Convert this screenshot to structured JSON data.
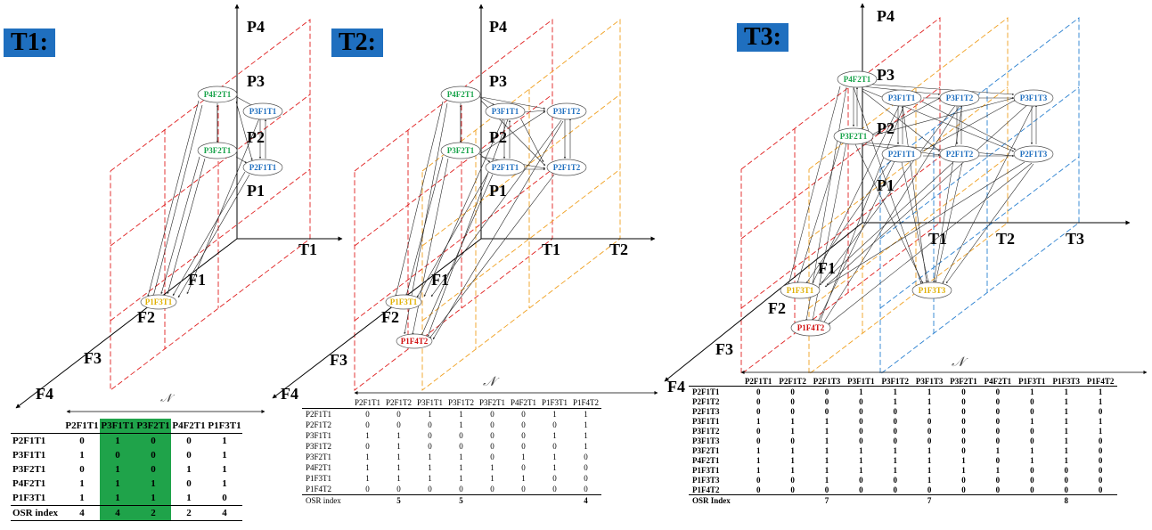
{
  "panels": [
    {
      "title": "T1:"
    },
    {
      "title": "T2:"
    },
    {
      "title": "T3:"
    }
  ],
  "axes": {
    "p4": "P4",
    "p3": "P3",
    "p2": "P2",
    "p1": "P1",
    "t1": "T1",
    "t2": "T2",
    "t3": "T3",
    "f1": "F1",
    "f2": "F2",
    "f3": "F3",
    "f4": "F4",
    "n_symbol": "𝒩"
  },
  "nodes": {
    "p4f2t1": "P4F2T1",
    "p3f2t1": "P3F2T1",
    "p3f1t1": "P3F1T1",
    "p2f1t1": "P2F1T1",
    "p1f3t1": "P1F3T1",
    "p3f1t2": "P3F1T2",
    "p2f1t2": "P2F1T2",
    "p1f4t2": "P1F4T2",
    "p3f1t3": "P3F1T3",
    "p2f1t3": "P2F1T3",
    "p1f3t3": "P1F3T3"
  },
  "colors": {
    "green_node": "#18a34a",
    "blue_node": "#1f6fbf",
    "yellow_node": "#e0b000",
    "red_node": "#d01010",
    "t1_plane": "#e02020",
    "t2_plane": "#f0a020",
    "t3_plane": "#2a80d0",
    "highlight": "#1fa34a",
    "title_bg": "#1f6fbf"
  },
  "table_t1": {
    "columns": [
      "P2F1T1",
      "P3F1T1",
      "P3F2T1",
      "P4F2T1",
      "P1F3T1"
    ],
    "rows": [
      {
        "label": "P2F1T1",
        "values": [
          "0",
          "1",
          "0",
          "0",
          "1"
        ]
      },
      {
        "label": "P3F1T1",
        "values": [
          "1",
          "0",
          "0",
          "0",
          "1"
        ]
      },
      {
        "label": "P3F2T1",
        "values": [
          "0",
          "1",
          "0",
          "1",
          "1"
        ]
      },
      {
        "label": "P4F2T1",
        "values": [
          "1",
          "1",
          "1",
          "0",
          "1"
        ]
      },
      {
        "label": "P1F3T1",
        "values": [
          "1",
          "1",
          "1",
          "1",
          "0"
        ]
      }
    ],
    "osr_label": "OSR index",
    "osr": [
      "4",
      "4",
      "2",
      "2",
      "4"
    ]
  },
  "table_t2": {
    "columns": [
      "P2F1T1",
      "P2F1T2",
      "P3F1T1",
      "P3F1T2",
      "P3F2T1",
      "P4F2T1",
      "P1F3T1",
      "P1F4T2"
    ],
    "rows": [
      {
        "label": "P2F1T1",
        "values": [
          "0",
          "0",
          "1",
          "1",
          "0",
          "0",
          "1",
          "1"
        ]
      },
      {
        "label": "P2F1T2",
        "values": [
          "0",
          "0",
          "0",
          "1",
          "0",
          "0",
          "0",
          "1"
        ]
      },
      {
        "label": "P3F1T1",
        "values": [
          "1",
          "1",
          "0",
          "0",
          "0",
          "0",
          "1",
          "1"
        ]
      },
      {
        "label": "P3F1T2",
        "values": [
          "0",
          "1",
          "0",
          "0",
          "0",
          "0",
          "0",
          "1"
        ]
      },
      {
        "label": "P3F2T1",
        "values": [
          "1",
          "1",
          "1",
          "1",
          "0",
          "1",
          "1",
          "0"
        ]
      },
      {
        "label": "P4F2T1",
        "values": [
          "1",
          "1",
          "1",
          "1",
          "1",
          "0",
          "1",
          "0"
        ]
      },
      {
        "label": "P1F3T1",
        "values": [
          "1",
          "1",
          "1",
          "1",
          "1",
          "1",
          "0",
          "0"
        ]
      },
      {
        "label": "P1F4T2",
        "values": [
          "0",
          "0",
          "0",
          "0",
          "0",
          "0",
          "0",
          "0"
        ]
      }
    ],
    "osr_label": "OSR index",
    "osr": [
      "",
      "5",
      "",
      "5",
      "",
      "",
      "",
      "4"
    ]
  },
  "table_t3": {
    "columns": [
      "P2F1T1",
      "P2F1T2",
      "P2F1T3",
      "P3F1T1",
      "P3F1T2",
      "P3F1T3",
      "P3F2T1",
      "P4F2T1",
      "P1F3T1",
      "P1F3T3",
      "P1F4T2"
    ],
    "rows": [
      {
        "label": "P2F1T1",
        "values": [
          "0",
          "0",
          "0",
          "1",
          "1",
          "1",
          "0",
          "0",
          "1",
          "1",
          "1"
        ]
      },
      {
        "label": "P2F1T2",
        "values": [
          "0",
          "0",
          "0",
          "0",
          "1",
          "1",
          "0",
          "0",
          "0",
          "1",
          "1"
        ]
      },
      {
        "label": "P2F1T3",
        "values": [
          "0",
          "0",
          "0",
          "0",
          "0",
          "1",
          "0",
          "0",
          "0",
          "1",
          "0"
        ]
      },
      {
        "label": "P3F1T1",
        "values": [
          "1",
          "1",
          "1",
          "0",
          "0",
          "0",
          "0",
          "0",
          "1",
          "1",
          "1"
        ]
      },
      {
        "label": "P3F1T2",
        "values": [
          "0",
          "1",
          "1",
          "0",
          "0",
          "0",
          "0",
          "0",
          "0",
          "1",
          "1"
        ]
      },
      {
        "label": "P3F1T3",
        "values": [
          "0",
          "0",
          "1",
          "0",
          "0",
          "0",
          "0",
          "0",
          "0",
          "1",
          "0"
        ]
      },
      {
        "label": "P3F2T1",
        "values": [
          "1",
          "1",
          "1",
          "1",
          "1",
          "1",
          "0",
          "1",
          "1",
          "1",
          "0"
        ]
      },
      {
        "label": "P4F2T1",
        "values": [
          "1",
          "1",
          "1",
          "1",
          "1",
          "1",
          "1",
          "0",
          "1",
          "1",
          "0"
        ]
      },
      {
        "label": "P1F3T1",
        "values": [
          "1",
          "1",
          "1",
          "1",
          "1",
          "1",
          "1",
          "1",
          "0",
          "0",
          "0"
        ]
      },
      {
        "label": "P1F3T3",
        "values": [
          "0",
          "0",
          "1",
          "0",
          "0",
          "1",
          "0",
          "0",
          "0",
          "0",
          "0"
        ]
      },
      {
        "label": "P1F4T2",
        "values": [
          "0",
          "0",
          "0",
          "0",
          "0",
          "0",
          "0",
          "0",
          "0",
          "0",
          "0"
        ]
      }
    ],
    "osr_label": "OSR Index",
    "osr": [
      "",
      "",
      "7",
      "",
      "",
      "7",
      "",
      "",
      "",
      "8",
      ""
    ]
  }
}
